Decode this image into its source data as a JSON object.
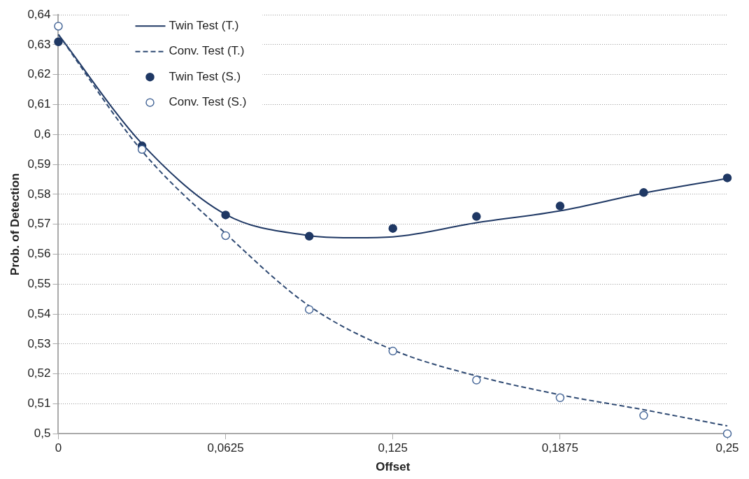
{
  "chart_data": {
    "type": "line",
    "xlabel": "Offset",
    "ylabel": "Prob. of Detection",
    "xlim": [
      0,
      0.25
    ],
    "xticks": [
      0,
      {
        "value": 0.0625,
        "label": "0,0625"
      },
      {
        "value": 0.125,
        "label": "0,125"
      },
      {
        "value": 0.1875,
        "label": "0,1875"
      },
      {
        "value": 0.25,
        "label": "0,25"
      }
    ],
    "ylim": [
      0.5,
      0.64
    ],
    "yticks": [
      {
        "value": 0.5,
        "label": "0,5"
      },
      {
        "value": 0.51,
        "label": "0,51"
      },
      {
        "value": 0.52,
        "label": "0,52"
      },
      {
        "value": 0.53,
        "label": "0,53"
      },
      {
        "value": 0.54,
        "label": "0,54"
      },
      {
        "value": 0.55,
        "label": "0,55"
      },
      {
        "value": 0.56,
        "label": "0,56"
      },
      {
        "value": 0.57,
        "label": "0,57"
      },
      {
        "value": 0.58,
        "label": "0,58"
      },
      {
        "value": 0.59,
        "label": "0,59"
      },
      {
        "value": 0.6,
        "label": "0,6"
      },
      {
        "value": 0.61,
        "label": "0,61"
      },
      {
        "value": 0.62,
        "label": "0,62"
      },
      {
        "value": 0.63,
        "label": "0,63"
      },
      {
        "value": 0.64,
        "label": "0,64"
      }
    ],
    "grid": "y",
    "legend": "top left",
    "series": [
      {
        "name": "Twin Test (T.)",
        "line_style": "solid",
        "marker": "none",
        "color": "#1f3864",
        "x": [
          0,
          0.03125,
          0.0625,
          0.09375,
          0.109,
          0.125,
          0.15625,
          0.1875,
          0.21875,
          0.25
        ],
        "values": [
          0.6334,
          0.5969,
          0.5733,
          0.5662,
          0.5655,
          0.5658,
          0.5705,
          0.5745,
          0.5804,
          0.5853
        ]
      },
      {
        "name": "Conv. Test (T.)",
        "line_style": "dashed",
        "marker": "none",
        "color": "#2f4a73",
        "x": [
          0,
          0.03125,
          0.0625,
          0.09375,
          0.125,
          0.15625,
          0.1875,
          0.21875,
          0.25
        ],
        "values": [
          0.6334,
          0.5945,
          0.5669,
          0.5427,
          0.528,
          0.5193,
          0.513,
          0.508,
          0.5026
        ]
      },
      {
        "name": "Twin Test (S.)",
        "type": "scatter",
        "marker": "circle",
        "color": "#1f3864",
        "x": [
          0,
          0.03125,
          0.0625,
          0.09375,
          0.125,
          0.15625,
          0.1875,
          0.21875,
          0.25
        ],
        "values": [
          0.631,
          0.5962,
          0.5731,
          0.566,
          0.5686,
          0.5726,
          0.5761,
          0.5806,
          0.5855
        ]
      },
      {
        "name": "Conv. Test (S.)",
        "type": "scatter",
        "marker": "circle",
        "color": "#4a6a9a",
        "x": [
          0,
          0.03125,
          0.0625,
          0.09375,
          0.125,
          0.15625,
          0.1875,
          0.21875,
          0.25
        ],
        "values": [
          0.6362,
          0.595,
          0.5662,
          0.5415,
          0.5276,
          0.5179,
          0.512,
          0.5061,
          0.5
        ]
      }
    ]
  }
}
